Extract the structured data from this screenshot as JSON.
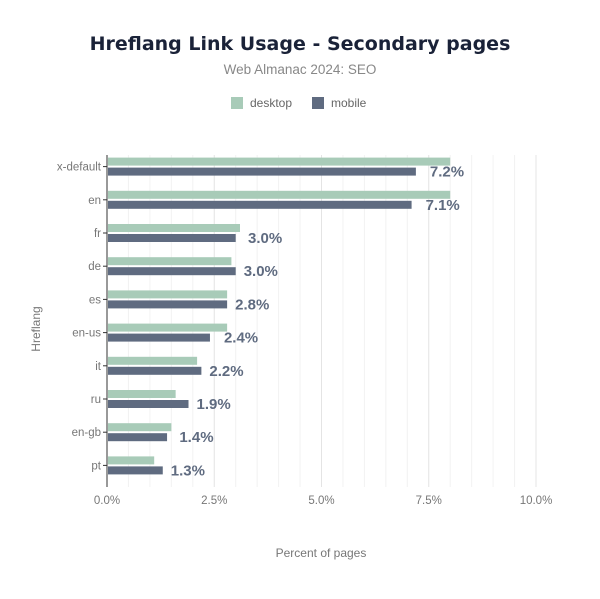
{
  "chart_data": {
    "type": "bar",
    "orientation": "horizontal",
    "title": "Hreflang Link Usage - Secondary pages",
    "subtitle": "Web Almanac 2024: SEO",
    "xlabel": "Percent of pages",
    "ylabel": "Hreflang",
    "xlim": [
      0,
      10
    ],
    "x_ticks": [
      "0.0%",
      "2.5%",
      "5.0%",
      "7.5%",
      "10.0%"
    ],
    "grid": true,
    "legend_placement": "top-center",
    "categories": [
      "x-default",
      "en",
      "fr",
      "de",
      "es",
      "en-us",
      "it",
      "ru",
      "en-gb",
      "pt"
    ],
    "series": [
      {
        "name": "desktop",
        "color": "#a8cbb8",
        "values": [
          8.0,
          8.0,
          3.1,
          2.9,
          2.8,
          2.8,
          2.1,
          1.6,
          1.5,
          1.1
        ]
      },
      {
        "name": "mobile",
        "color": "#5f6b80",
        "values": [
          7.2,
          7.1,
          3.0,
          3.0,
          2.8,
          2.4,
          2.2,
          1.9,
          1.4,
          1.3
        ],
        "value_labels": [
          "7.2%",
          "7.1%",
          "3.0%",
          "3.0%",
          "2.8%",
          "2.4%",
          "2.2%",
          "1.9%",
          "1.4%",
          "1.3%"
        ]
      }
    ]
  }
}
